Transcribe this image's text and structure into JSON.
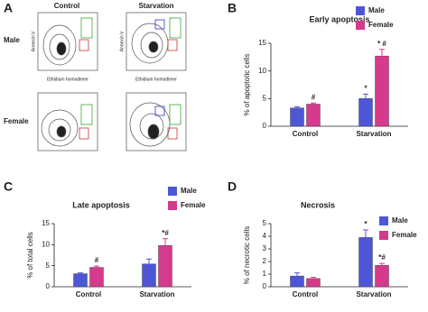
{
  "panel_a": {
    "label": "A",
    "columns": [
      "Control",
      "Starvation"
    ],
    "rows": [
      "Male",
      "Female"
    ],
    "y_axis_label": "Annexin V",
    "x_axis_label": "Ethidium homodimer"
  },
  "chart_data": [
    {
      "panel_label": "B",
      "type": "bar",
      "title": "Early apoptosis",
      "y_label": "% of apoptotic cells",
      "categories": [
        "Control",
        "Starvation"
      ],
      "ylim": [
        0,
        15
      ],
      "yticks": [
        0,
        5,
        10,
        15
      ],
      "series": [
        {
          "name": "Male",
          "color": "#4d57d6",
          "values": [
            3.3,
            5.0
          ],
          "errors": [
            0.2,
            0.8
          ],
          "annotations": [
            null,
            "*"
          ]
        },
        {
          "name": "Female",
          "color": "#d63a8c",
          "values": [
            4.0,
            12.7
          ],
          "errors": [
            0.2,
            1.2
          ],
          "annotations": [
            "#",
            "* #"
          ]
        }
      ]
    },
    {
      "panel_label": "C",
      "type": "bar",
      "title": "Late apoptosis",
      "y_label": "% of total cells",
      "categories": [
        "Control",
        "Starvation"
      ],
      "ylim": [
        0,
        15
      ],
      "yticks": [
        0,
        5,
        10,
        15
      ],
      "series": [
        {
          "name": "Male",
          "color": "#4d57d6",
          "values": [
            3.1,
            5.4
          ],
          "errors": [
            0.2,
            1.2
          ],
          "annotations": [
            null,
            null
          ]
        },
        {
          "name": "Female",
          "color": "#d63a8c",
          "values": [
            4.6,
            9.8
          ],
          "errors": [
            0.3,
            1.6
          ],
          "annotations": [
            "#",
            "*#"
          ]
        }
      ]
    },
    {
      "panel_label": "D",
      "type": "bar",
      "title": "Necrosis",
      "y_label": "% of necrotic cells",
      "categories": [
        "Control",
        "Starvation"
      ],
      "ylim": [
        0,
        5
      ],
      "yticks": [
        0,
        1,
        2,
        3,
        4,
        5
      ],
      "series": [
        {
          "name": "Male",
          "color": "#4d57d6",
          "values": [
            0.85,
            3.9
          ],
          "errors": [
            0.25,
            0.6
          ],
          "annotations": [
            null,
            "*"
          ]
        },
        {
          "name": "Female",
          "color": "#d63a8c",
          "values": [
            0.65,
            1.7
          ],
          "errors": [
            0.1,
            0.15
          ],
          "annotations": [
            null,
            "*#"
          ]
        }
      ]
    }
  ]
}
